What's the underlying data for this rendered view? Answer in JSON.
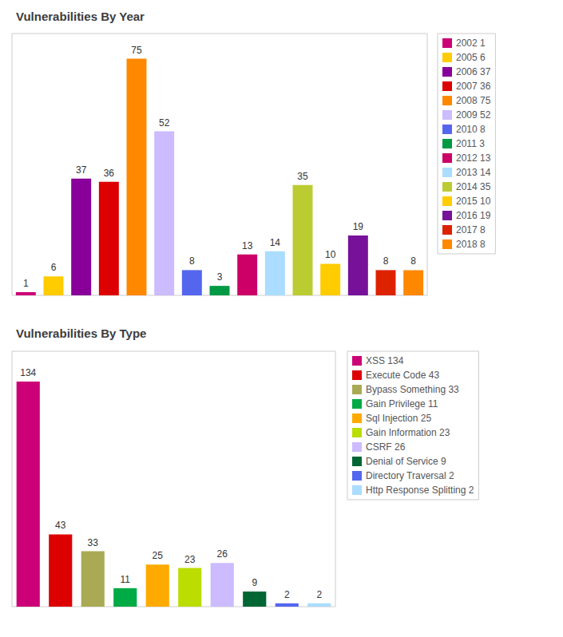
{
  "chart_data": [
    {
      "type": "bar",
      "title": "Vulnerabilities By Year",
      "categories": [
        "2002 1",
        "2005 6",
        "2006 37",
        "2007 36",
        "2008 75",
        "2009 52",
        "2010 8",
        "2011 3",
        "2012 13",
        "2013 14",
        "2014 35",
        "2015 10",
        "2016 19",
        "2017 8",
        "2018 8"
      ],
      "values": [
        1,
        6,
        37,
        36,
        75,
        52,
        8,
        3,
        13,
        14,
        35,
        10,
        19,
        8,
        8
      ],
      "colors": [
        "#cc0077",
        "#ffcc00",
        "#880099",
        "#dd0000",
        "#ff8800",
        "#ccbbff",
        "#5566ee",
        "#009944",
        "#cc0066",
        "#aaddff",
        "#bbcc33",
        "#ffcc00",
        "#771199",
        "#dd2200",
        "#ff8800"
      ],
      "ylim": [
        0,
        83
      ],
      "tick_labels": false,
      "grid": false,
      "data_labels": true,
      "legend": "right"
    },
    {
      "type": "bar",
      "title": "Vulnerabilities By Type",
      "categories": [
        "XSS 134",
        "Execute Code 43",
        "Bypass Something 33",
        "Gain Privilege 11",
        "Sql Injection 25",
        "Gain Information 23",
        "CSRF 26",
        "Denial of Service 9",
        "Directory Traversal 2",
        "Http Response Splitting 2"
      ],
      "values": [
        134,
        43,
        33,
        11,
        25,
        23,
        26,
        9,
        2,
        2
      ],
      "colors": [
        "#cc0077",
        "#dd0000",
        "#aaaa55",
        "#00aa44",
        "#ffaa00",
        "#bbdd00",
        "#ccbbff",
        "#006633",
        "#5566ee",
        "#aaddff"
      ],
      "ylim": [
        0,
        152
      ],
      "tick_labels": false,
      "grid": false,
      "data_labels": true,
      "legend": "right"
    }
  ]
}
